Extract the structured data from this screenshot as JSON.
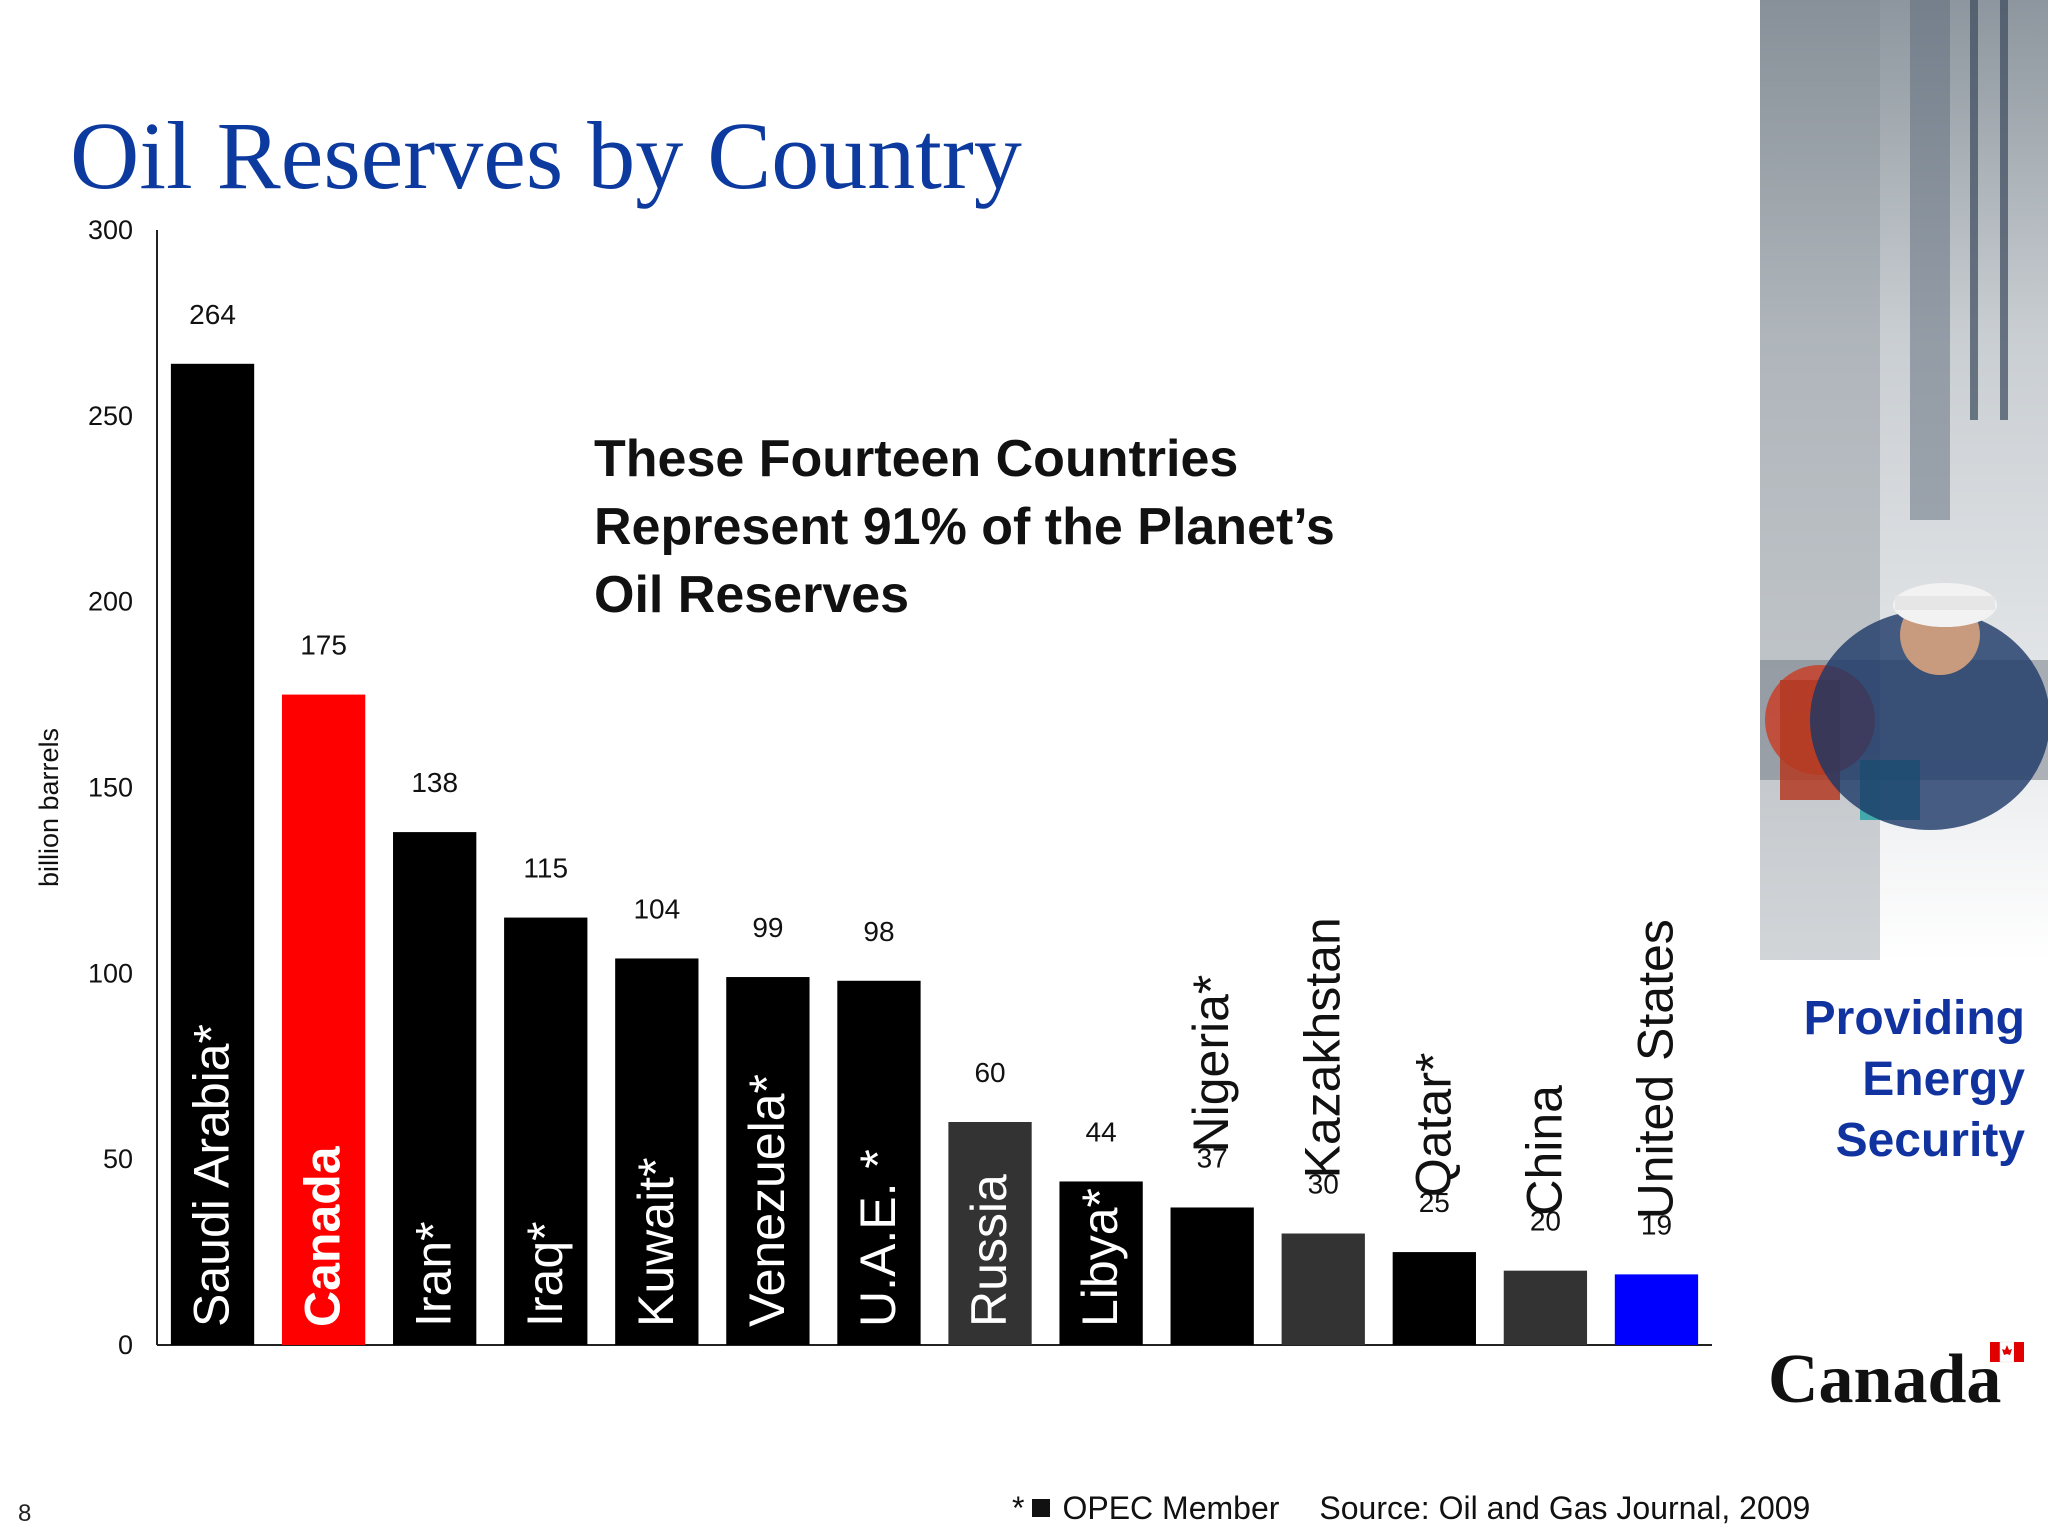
{
  "slide": {
    "title": "Oil Reserves by Country",
    "callout_lines": [
      "These Fourteen Countries",
      "Represent 91% of the Planet’s",
      "Oil Reserves"
    ],
    "side_text_lines": [
      "Providing",
      "Energy",
      "Security"
    ],
    "logo_text": "Canada",
    "page_number": "8",
    "legend_star": "*",
    "legend_label": "OPEC Member",
    "source": "Source: Oil and Gas Journal, 2009"
  },
  "chart_data": {
    "type": "bar",
    "ylabel": "billion barrels",
    "ylim": [
      0,
      300
    ],
    "yticks": [
      0,
      50,
      100,
      150,
      200,
      250,
      300
    ],
    "categories": [
      "Saudi Arabia*",
      "Canada",
      "Iran*",
      "Iraq*",
      "Kuwait*",
      "Venezuela*",
      "U.A.E. *",
      "Russia",
      "Libya*",
      "Nigeria*",
      "Kazakhstan",
      "Qatar*",
      "China",
      "United States"
    ],
    "values": [
      264,
      175,
      138,
      115,
      104,
      99,
      98,
      60,
      44,
      37,
      30,
      25,
      20,
      19
    ],
    "bar_colors": [
      "#000000",
      "#ff0000",
      "#000000",
      "#000000",
      "#000000",
      "#000000",
      "#000000",
      "#333333",
      "#000000",
      "#000000",
      "#333333",
      "#000000",
      "#333333",
      "#0000ff"
    ],
    "label_placement": [
      "inside",
      "inside",
      "inside",
      "inside",
      "inside",
      "inside",
      "inside",
      "inside",
      "inside",
      "above",
      "above",
      "above",
      "above",
      "above"
    ]
  },
  "colors": {
    "title": "#0d3a9e",
    "side_text": "#1133a0",
    "canada_highlight": "#ff0000",
    "us_highlight": "#0000ff"
  }
}
